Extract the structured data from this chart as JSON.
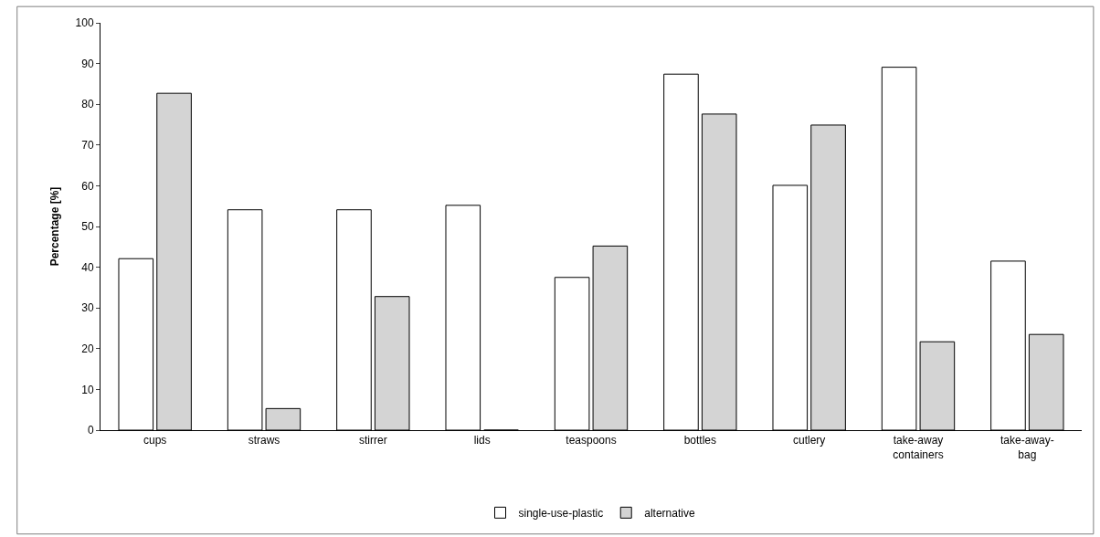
{
  "chart_data": {
    "type": "bar",
    "ylabel": "Percentage [%]",
    "categories": [
      "cups",
      "straws",
      "stirrer",
      "lids",
      "teaspoons",
      "bottles",
      "cutlery",
      "take-away containers",
      "take-away-bag"
    ],
    "series": [
      {
        "name": "single-use-plastic",
        "color": "#ffffff",
        "values": [
          42.1,
          54.1,
          54.1,
          55.2,
          37.5,
          87.4,
          60.1,
          89.1,
          41.5
        ]
      },
      {
        "name": "alternative",
        "color": "#d4d4d4",
        "values": [
          82.7,
          5.3,
          32.8,
          0,
          45.2,
          77.6,
          74.9,
          21.7,
          23.5
        ]
      }
    ],
    "ylim": [
      0,
      100
    ],
    "yticks": [
      0,
      10,
      20,
      30,
      40,
      50,
      60,
      70,
      80,
      90,
      100
    ],
    "legend": "bottom"
  }
}
